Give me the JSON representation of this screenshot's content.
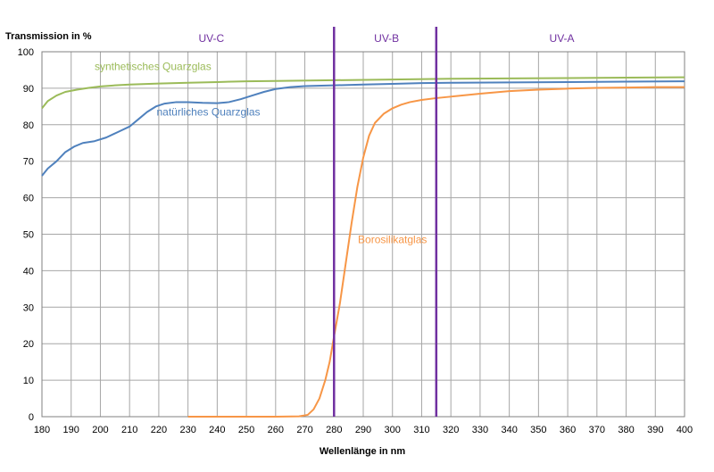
{
  "chart_data": {
    "type": "line",
    "title": "",
    "ylabel": "Transmission in %",
    "xlabel": "Wellenlänge in  nm",
    "xlim": [
      180,
      400
    ],
    "ylim": [
      0,
      100
    ],
    "x_ticks": [
      180,
      190,
      200,
      210,
      220,
      230,
      240,
      250,
      260,
      270,
      280,
      290,
      300,
      310,
      320,
      330,
      340,
      350,
      360,
      370,
      380,
      390,
      400
    ],
    "y_ticks": [
      0,
      10,
      20,
      30,
      40,
      50,
      60,
      70,
      80,
      90,
      100
    ],
    "grid": true,
    "bands": [
      {
        "name": "UV-C",
        "label_x": 238
      },
      {
        "name": "UV-B",
        "label_x": 298
      },
      {
        "name": "UV-A",
        "label_x": 358
      }
    ],
    "vertical_lines": [
      {
        "x": 280,
        "color": "#7030a0"
      },
      {
        "x": 315,
        "color": "#7030a0"
      }
    ],
    "series": [
      {
        "name": "synthetisches Quarzglas",
        "color": "#9bbb59",
        "label_x": 218,
        "label_y": 95,
        "points": [
          [
            180,
            84.5
          ],
          [
            182,
            86.5
          ],
          [
            185,
            88
          ],
          [
            188,
            89
          ],
          [
            192,
            89.6
          ],
          [
            196,
            90.1
          ],
          [
            200,
            90.5
          ],
          [
            205,
            90.8
          ],
          [
            210,
            91
          ],
          [
            220,
            91.3
          ],
          [
            230,
            91.5
          ],
          [
            240,
            91.7
          ],
          [
            250,
            91.9
          ],
          [
            260,
            92
          ],
          [
            280,
            92.2
          ],
          [
            300,
            92.4
          ],
          [
            320,
            92.6
          ],
          [
            340,
            92.7
          ],
          [
            360,
            92.8
          ],
          [
            380,
            92.9
          ],
          [
            400,
            93
          ]
        ]
      },
      {
        "name": "natürliches Quarzglas",
        "color": "#4f81bd",
        "label_x": 237,
        "label_y": 82.5,
        "points": [
          [
            180,
            66
          ],
          [
            182,
            68
          ],
          [
            185,
            70
          ],
          [
            188,
            72.5
          ],
          [
            191,
            74
          ],
          [
            194,
            75
          ],
          [
            198,
            75.5
          ],
          [
            202,
            76.5
          ],
          [
            206,
            78
          ],
          [
            210,
            79.5
          ],
          [
            213,
            81.5
          ],
          [
            216,
            83.5
          ],
          [
            219,
            85
          ],
          [
            222,
            85.8
          ],
          [
            226,
            86.2
          ],
          [
            230,
            86.2
          ],
          [
            235,
            86
          ],
          [
            240,
            85.9
          ],
          [
            244,
            86.2
          ],
          [
            248,
            87
          ],
          [
            252,
            88
          ],
          [
            256,
            89
          ],
          [
            260,
            89.8
          ],
          [
            265,
            90.3
          ],
          [
            270,
            90.6
          ],
          [
            280,
            90.8
          ],
          [
            290,
            91
          ],
          [
            300,
            91.2
          ],
          [
            310,
            91.4
          ],
          [
            320,
            91.5
          ],
          [
            340,
            91.6
          ],
          [
            360,
            91.7
          ],
          [
            380,
            91.8
          ],
          [
            400,
            91.9
          ]
        ]
      },
      {
        "name": "Borosilikatglas",
        "color": "#f79646",
        "label_x": 300,
        "label_y": 47.5,
        "points": [
          [
            230,
            0
          ],
          [
            250,
            0
          ],
          [
            260,
            0
          ],
          [
            268,
            0.1
          ],
          [
            271,
            0.5
          ],
          [
            273,
            2
          ],
          [
            275,
            5
          ],
          [
            277,
            10
          ],
          [
            278.5,
            15
          ],
          [
            280,
            22
          ],
          [
            282,
            31
          ],
          [
            284,
            42
          ],
          [
            286,
            53
          ],
          [
            288,
            63
          ],
          [
            290,
            71
          ],
          [
            292,
            77
          ],
          [
            294,
            80.5
          ],
          [
            297,
            83
          ],
          [
            300,
            84.5
          ],
          [
            303,
            85.5
          ],
          [
            306,
            86.2
          ],
          [
            310,
            86.8
          ],
          [
            315,
            87.3
          ],
          [
            320,
            87.7
          ],
          [
            330,
            88.5
          ],
          [
            340,
            89.2
          ],
          [
            350,
            89.6
          ],
          [
            360,
            89.9
          ],
          [
            370,
            90.1
          ],
          [
            380,
            90.2
          ],
          [
            390,
            90.3
          ],
          [
            400,
            90.3
          ]
        ]
      }
    ]
  }
}
